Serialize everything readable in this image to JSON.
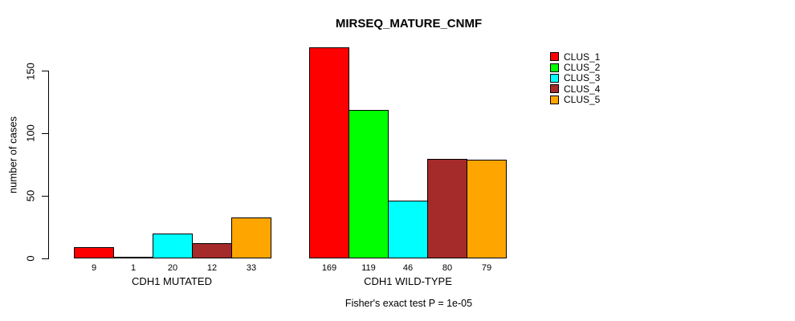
{
  "chart_data": {
    "type": "bar",
    "title": "MIRSEQ_MATURE_CNMF",
    "ylabel": "number of cases",
    "xlabel": "",
    "footnote": "Fisher's exact test P = 1e-05",
    "yticks": [
      0,
      50,
      100,
      150
    ],
    "ylim": [
      0,
      169
    ],
    "grid": false,
    "legend_position": "right",
    "categories": [
      "CDH1 MUTATED",
      "CDH1 WILD-TYPE"
    ],
    "groups": [
      {
        "label": "CDH1 MUTATED",
        "values": [
          9,
          1,
          20,
          12,
          33
        ]
      },
      {
        "label": "CDH1 WILD-TYPE",
        "values": [
          169,
          119,
          46,
          80,
          79
        ]
      }
    ],
    "series": [
      {
        "name": "CLUS_1",
        "color": "#ff0000"
      },
      {
        "name": "CLUS_2",
        "color": "#00ff00"
      },
      {
        "name": "CLUS_3",
        "color": "#00ffff"
      },
      {
        "name": "CLUS_4",
        "color": "#a52a2a"
      },
      {
        "name": "CLUS_5",
        "color": "#ffa500"
      }
    ]
  }
}
